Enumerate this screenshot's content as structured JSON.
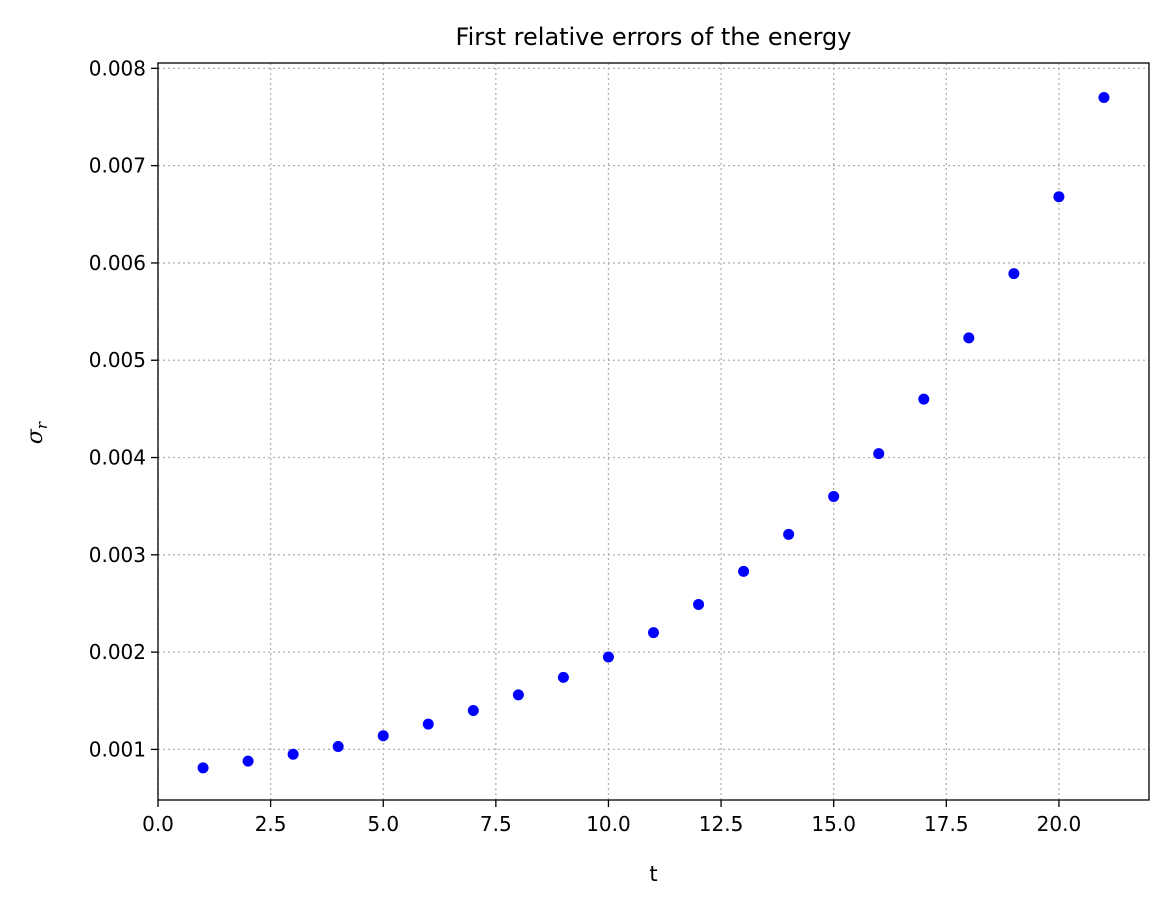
{
  "chart_data": {
    "type": "scatter",
    "title": "First relative errors of the energy",
    "xlabel": "t",
    "ylabel": "σ",
    "ylabel_subscript": "r",
    "xlim": [
      0.0,
      22.0
    ],
    "ylim": [
      0.00048,
      0.008055
    ],
    "xticks": [
      0.0,
      2.5,
      5.0,
      7.5,
      10.0,
      12.5,
      15.0,
      17.5,
      20.0
    ],
    "xtick_labels": [
      "0.0",
      "2.5",
      "5.0",
      "7.5",
      "10.0",
      "12.5",
      "15.0",
      "17.5",
      "20.0"
    ],
    "yticks": [
      0.001,
      0.002,
      0.003,
      0.004,
      0.005,
      0.006,
      0.007,
      0.008
    ],
    "ytick_labels": [
      "0.001",
      "0.002",
      "0.003",
      "0.004",
      "0.005",
      "0.006",
      "0.007",
      "0.008"
    ],
    "grid": true,
    "marker_color": "#0000ff",
    "series": [
      {
        "x": [
          1,
          2,
          3,
          4,
          5,
          6,
          7,
          8,
          9,
          10,
          11,
          12,
          13,
          14,
          15,
          16,
          17,
          18,
          19,
          20,
          21
        ],
        "y": [
          0.00081,
          0.00088,
          0.00095,
          0.00103,
          0.00114,
          0.00126,
          0.0014,
          0.00156,
          0.00174,
          0.00195,
          0.0022,
          0.00249,
          0.00283,
          0.00321,
          0.0036,
          0.00404,
          0.0046,
          0.00523,
          0.00589,
          0.00668,
          0.0077
        ]
      }
    ]
  }
}
